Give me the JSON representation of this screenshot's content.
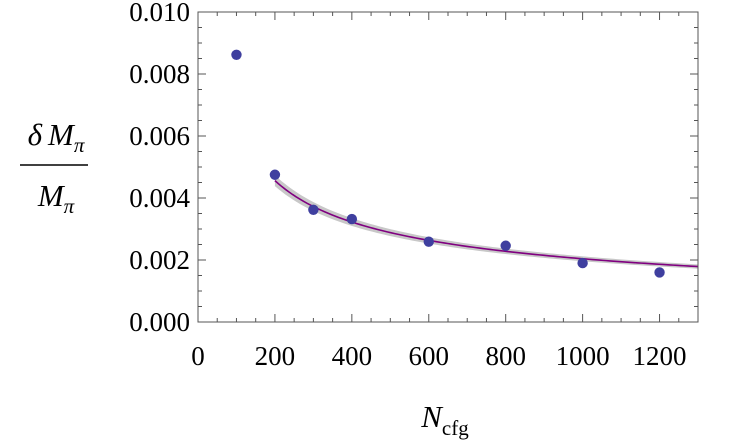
{
  "chart_data": {
    "type": "scatter",
    "title": "",
    "xlabel": {
      "main": "N",
      "sub": "cfg"
    },
    "ylabel": {
      "numerator_delta": "δ",
      "numerator": "M",
      "numerator_sub": "π",
      "denominator": "M",
      "denominator_sub": "π"
    },
    "xlim": [
      0,
      1300
    ],
    "ylim": [
      0,
      0.01
    ],
    "x_ticks": [
      0,
      200,
      400,
      600,
      800,
      1000,
      1200
    ],
    "x_tick_labels": [
      "0",
      "200",
      "400",
      "600",
      "800",
      "1000",
      "1200"
    ],
    "y_ticks": [
      0,
      0.002,
      0.004,
      0.006,
      0.008,
      0.01
    ],
    "y_tick_labels": [
      "0.000",
      "0.002",
      "0.004",
      "0.006",
      "0.008",
      "0.010"
    ],
    "grid": false,
    "series": [
      {
        "name": "data",
        "type": "scatter",
        "color": "#3f3f9f",
        "points": [
          {
            "x": 100,
            "y": 0.00862
          },
          {
            "x": 200,
            "y": 0.00475
          },
          {
            "x": 300,
            "y": 0.00362
          },
          {
            "x": 400,
            "y": 0.00332
          },
          {
            "x": 600,
            "y": 0.00259
          },
          {
            "x": 800,
            "y": 0.00246
          },
          {
            "x": 1000,
            "y": 0.0019
          },
          {
            "x": 1200,
            "y": 0.0016
          }
        ]
      },
      {
        "name": "fit",
        "type": "line",
        "color": "#800080",
        "band_color": "#c8c8c8",
        "model": "A / sqrt(N)",
        "A": 0.0645,
        "A_band": 0.0025,
        "x_range": [
          200,
          1300
        ]
      }
    ]
  }
}
